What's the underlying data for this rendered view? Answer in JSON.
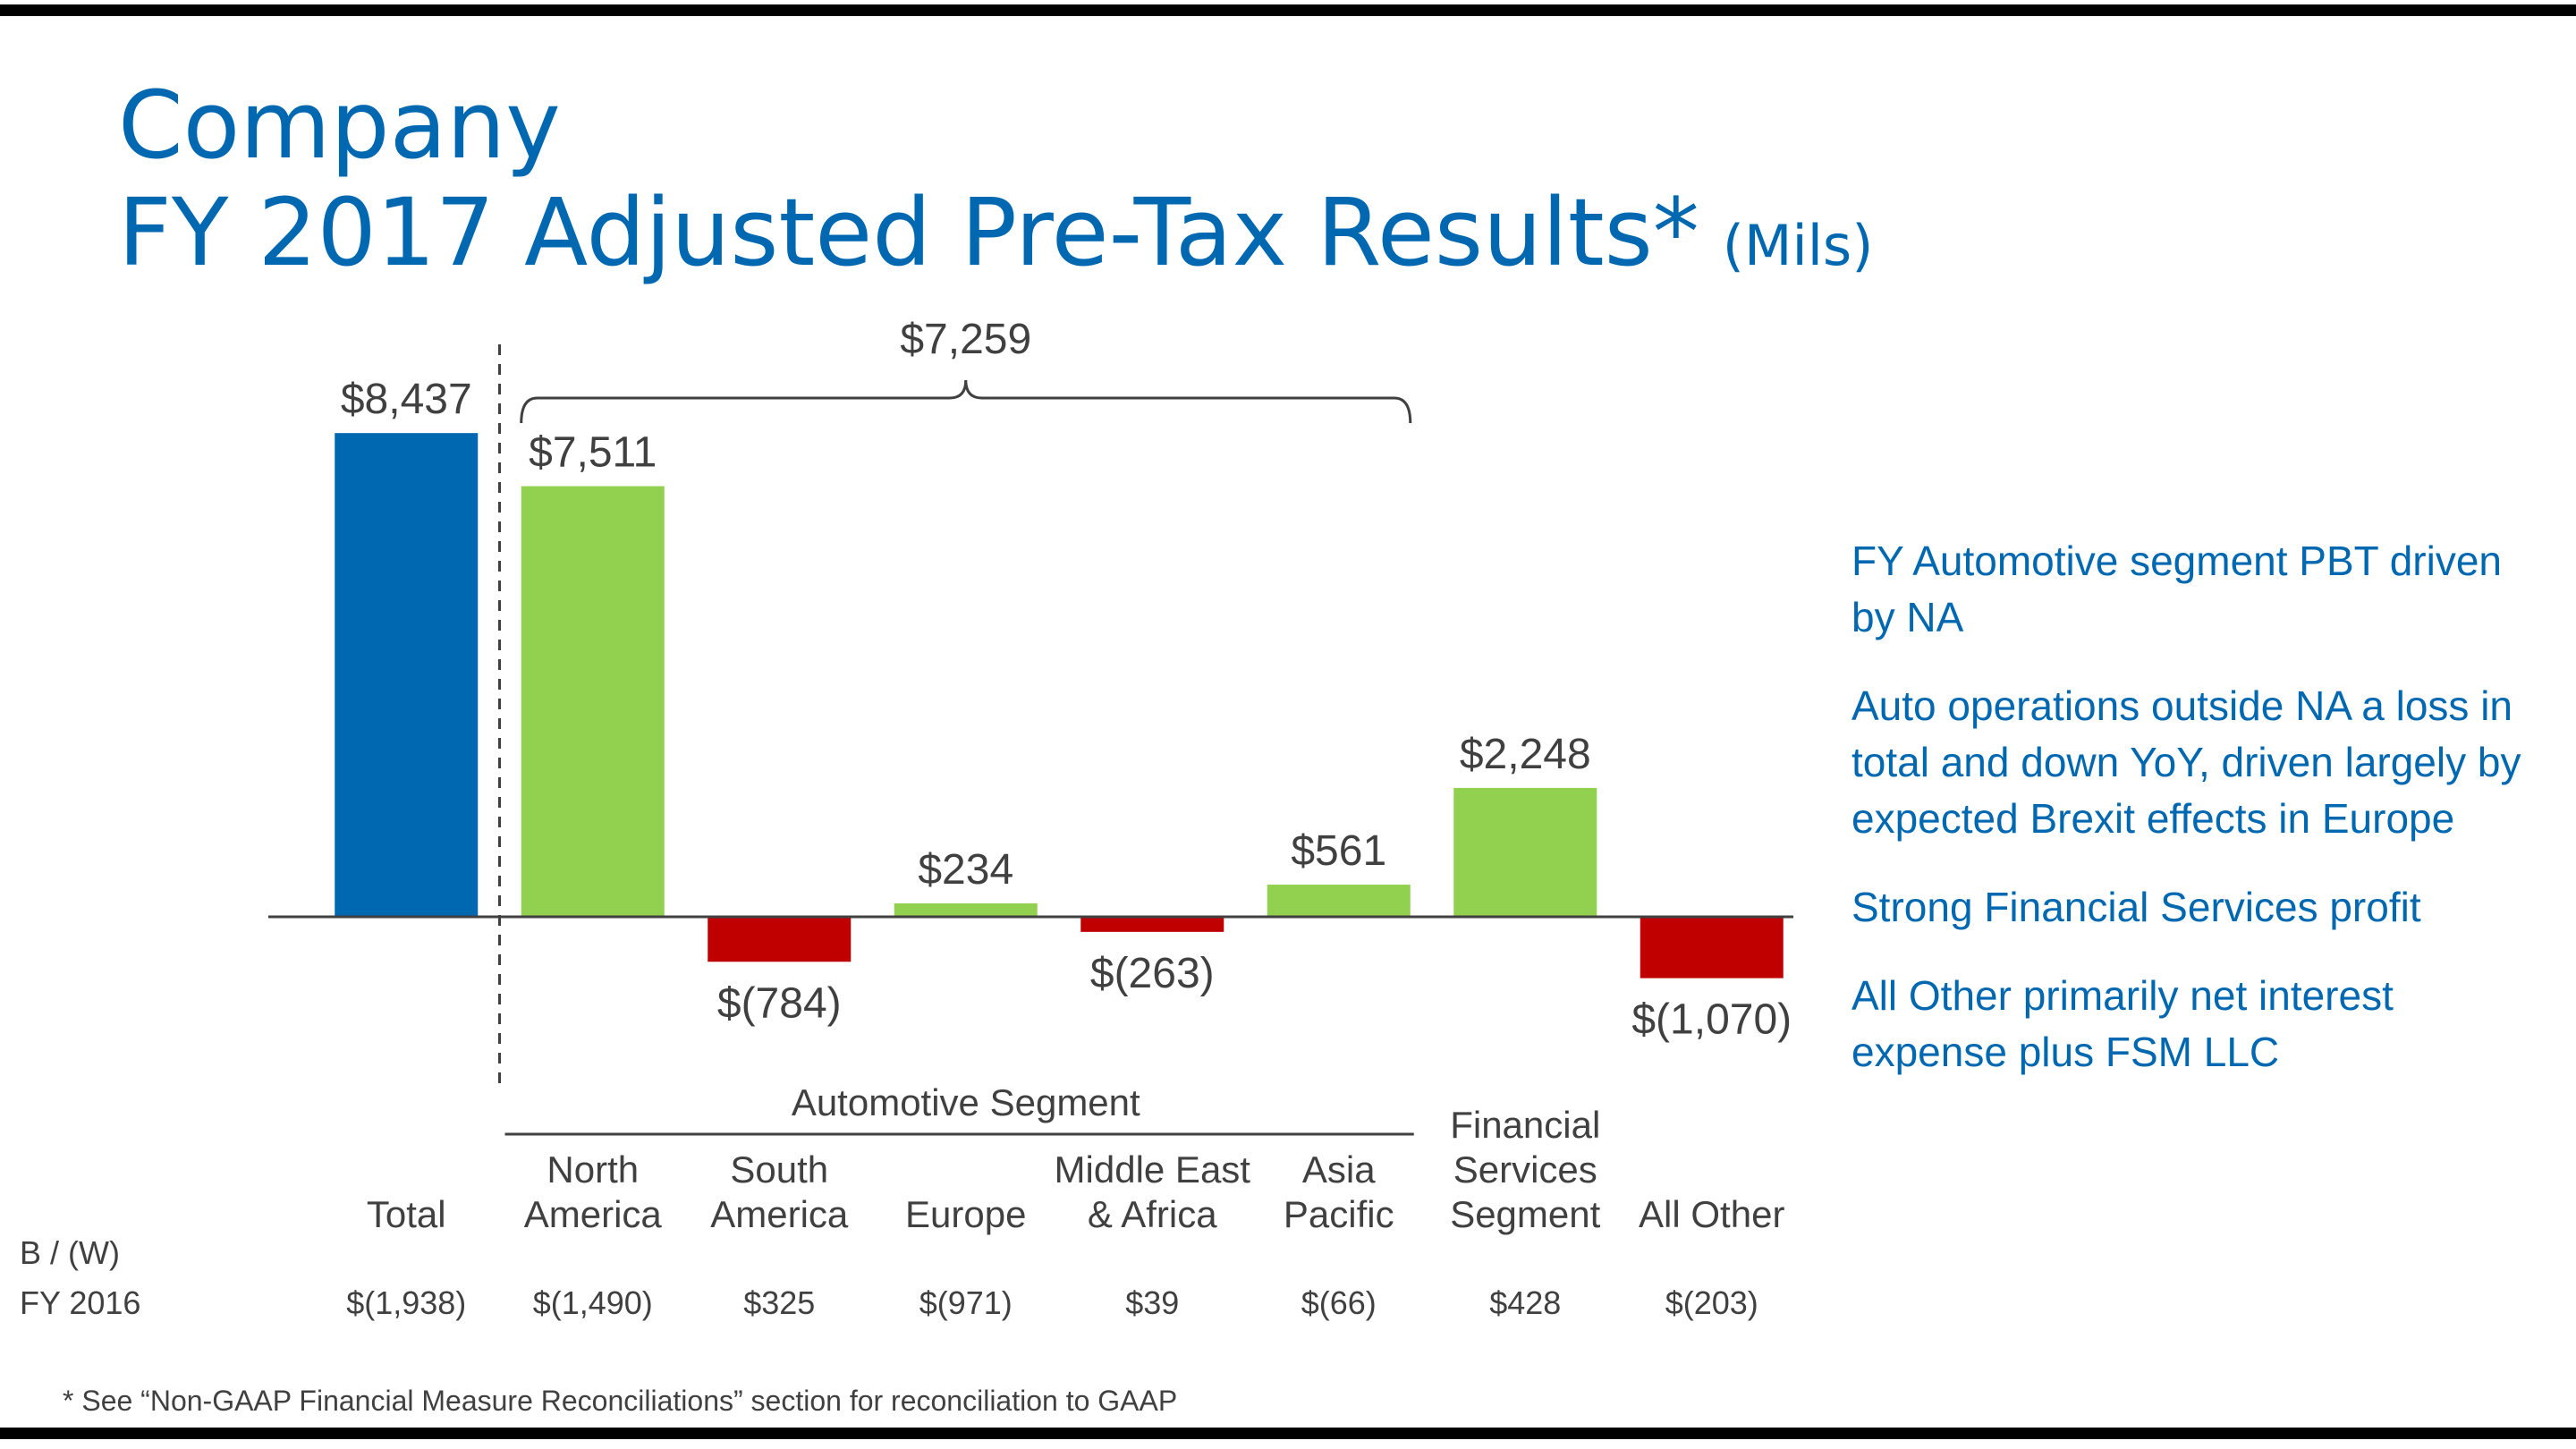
{
  "title": {
    "line1": "Company",
    "line2": "FY 2017 Adjusted Pre-Tax Results*",
    "unit": "(Mils)"
  },
  "chart_data": {
    "type": "bar",
    "categories": [
      "Total",
      "North America",
      "South America",
      "Europe",
      "Middle East & Africa",
      "Asia Pacific",
      "Financial Services Segment",
      "All Other"
    ],
    "category_lines": [
      [
        "Total"
      ],
      [
        "North",
        "America"
      ],
      [
        "South",
        "America"
      ],
      [
        "Europe"
      ],
      [
        "Middle East",
        "& Africa"
      ],
      [
        "Asia",
        "Pacific"
      ],
      [
        "Financial",
        "Services",
        "Segment"
      ],
      [
        "All Other"
      ]
    ],
    "values": [
      8437,
      7511,
      -784,
      234,
      -263,
      561,
      2248,
      -1070
    ],
    "value_labels": [
      "$8,437",
      "$7,511",
      "$(784)",
      "$234",
      "$(263)",
      "$561",
      "$2,248",
      "$(1,070)"
    ],
    "group_label": "Automotive Segment",
    "group_total_label": "$7,259",
    "colors": {
      "total": "#0068b0",
      "positive": "#92d050",
      "negative": "#c00000"
    }
  },
  "comparison_row": {
    "label_line1": "B / (W)",
    "label_line2": "FY 2016",
    "values": [
      "$(1,938)",
      "$(1,490)",
      "$325",
      "$(971)",
      "$39",
      "$(66)",
      "$428",
      "$(203)"
    ]
  },
  "bullets": [
    "FY Automotive segment PBT driven by NA",
    "Auto operations outside NA a loss in total and down YoY, driven largely by expected Brexit effects in Europe",
    "Strong Financial Services profit",
    "All Other primarily net interest expense plus FSM LLC"
  ],
  "footnote": "*  See “Non-GAAP Financial Measure Reconciliations” section for reconciliation to GAAP"
}
